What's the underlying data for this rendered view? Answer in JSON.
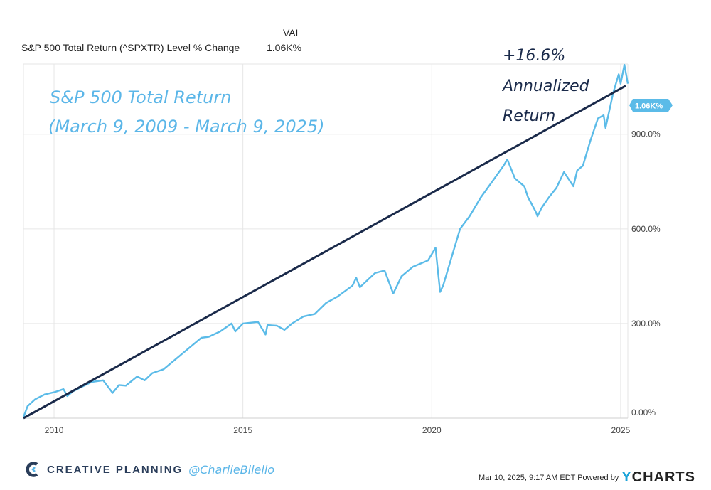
{
  "legend": {
    "header": "VAL",
    "series_name": "S&P 500 Total Return (^SPXTR) Level % Change",
    "value": "1.06K%"
  },
  "annotations": {
    "title_line1": "S&P 500 Total Return",
    "title_line2": "(March 9, 2009 - March 9, 2025)",
    "cagr_line1": "+16.6%",
    "cagr_line2": "Annualized",
    "cagr_line3": "Return",
    "last_value_tag": "1.06K%"
  },
  "footer": {
    "brand": "CREATIVE PLANNING",
    "handle": "@CharlieBilello",
    "timestamp": "Mar 10, 2025, 9:17 AM EDT Powered by",
    "ycharts_y": "Y",
    "ycharts_rest": "CHARTS"
  },
  "colors": {
    "series": "#5bbbe8",
    "trend": "#1a2a4a",
    "grid": "#e6e6e6",
    "annotation_blue": "#5bb6e8",
    "annotation_dark": "#1a2a4a",
    "brand": "#2a3d5a"
  },
  "chart_data": {
    "type": "line",
    "title": "S&P 500 Total Return (^SPXTR) Level % Change",
    "xlabel": "",
    "ylabel": "",
    "xlim": [
      2009.19,
      2025.19
    ],
    "ylim": [
      0,
      1100
    ],
    "x_ticks": [
      2010,
      2015,
      2020,
      2025
    ],
    "x_tick_labels": [
      "2010",
      "2015",
      "2020",
      "2025"
    ],
    "y_ticks": [
      0,
      300,
      600,
      900
    ],
    "y_tick_labels": [
      "0.00%",
      "300.0%",
      "600.0%",
      "900.0%"
    ],
    "grid": true,
    "series": [
      {
        "name": "S&P 500 Total Return (^SPXTR) Level % Change",
        "x": [
          2009.19,
          2009.3,
          2009.5,
          2009.75,
          2010.0,
          2010.25,
          2010.35,
          2010.5,
          2010.75,
          2011.0,
          2011.3,
          2011.55,
          2011.72,
          2011.9,
          2012.2,
          2012.4,
          2012.6,
          2012.9,
          2013.2,
          2013.5,
          2013.9,
          2014.1,
          2014.4,
          2014.7,
          2014.8,
          2015.0,
          2015.4,
          2015.6,
          2015.65,
          2015.9,
          2016.1,
          2016.3,
          2016.6,
          2016.9,
          2017.2,
          2017.5,
          2017.9,
          2018.0,
          2018.1,
          2018.3,
          2018.5,
          2018.75,
          2018.98,
          2019.2,
          2019.5,
          2019.9,
          2020.1,
          2020.15,
          2020.22,
          2020.3,
          2020.5,
          2020.75,
          2021.0,
          2021.3,
          2021.6,
          2021.9,
          2022.0,
          2022.2,
          2022.45,
          2022.55,
          2022.75,
          2022.8,
          2022.9,
          2023.1,
          2023.3,
          2023.5,
          2023.75,
          2023.85,
          2024.0,
          2024.2,
          2024.4,
          2024.55,
          2024.6,
          2024.8,
          2024.95,
          2025.0,
          2025.1,
          2025.19
        ],
        "values": [
          3,
          38,
          60,
          75,
          82,
          92,
          70,
          85,
          100,
          115,
          120,
          80,
          105,
          103,
          132,
          120,
          143,
          155,
          185,
          215,
          255,
          258,
          275,
          300,
          275,
          300,
          305,
          265,
          295,
          293,
          280,
          300,
          322,
          330,
          365,
          385,
          420,
          445,
          415,
          438,
          460,
          468,
          395,
          450,
          480,
          500,
          540,
          480,
          400,
          420,
          500,
          600,
          640,
          700,
          750,
          800,
          820,
          760,
          735,
          700,
          655,
          640,
          665,
          700,
          730,
          780,
          735,
          785,
          800,
          880,
          950,
          960,
          920,
          1030,
          1090,
          1060,
          1120,
          1060
        ]
      }
    ],
    "trend_line": {
      "name": "+16.6% Annualized Return",
      "x": [
        2009.19,
        2025.19
      ],
      "values": [
        0,
        1060
      ]
    }
  }
}
